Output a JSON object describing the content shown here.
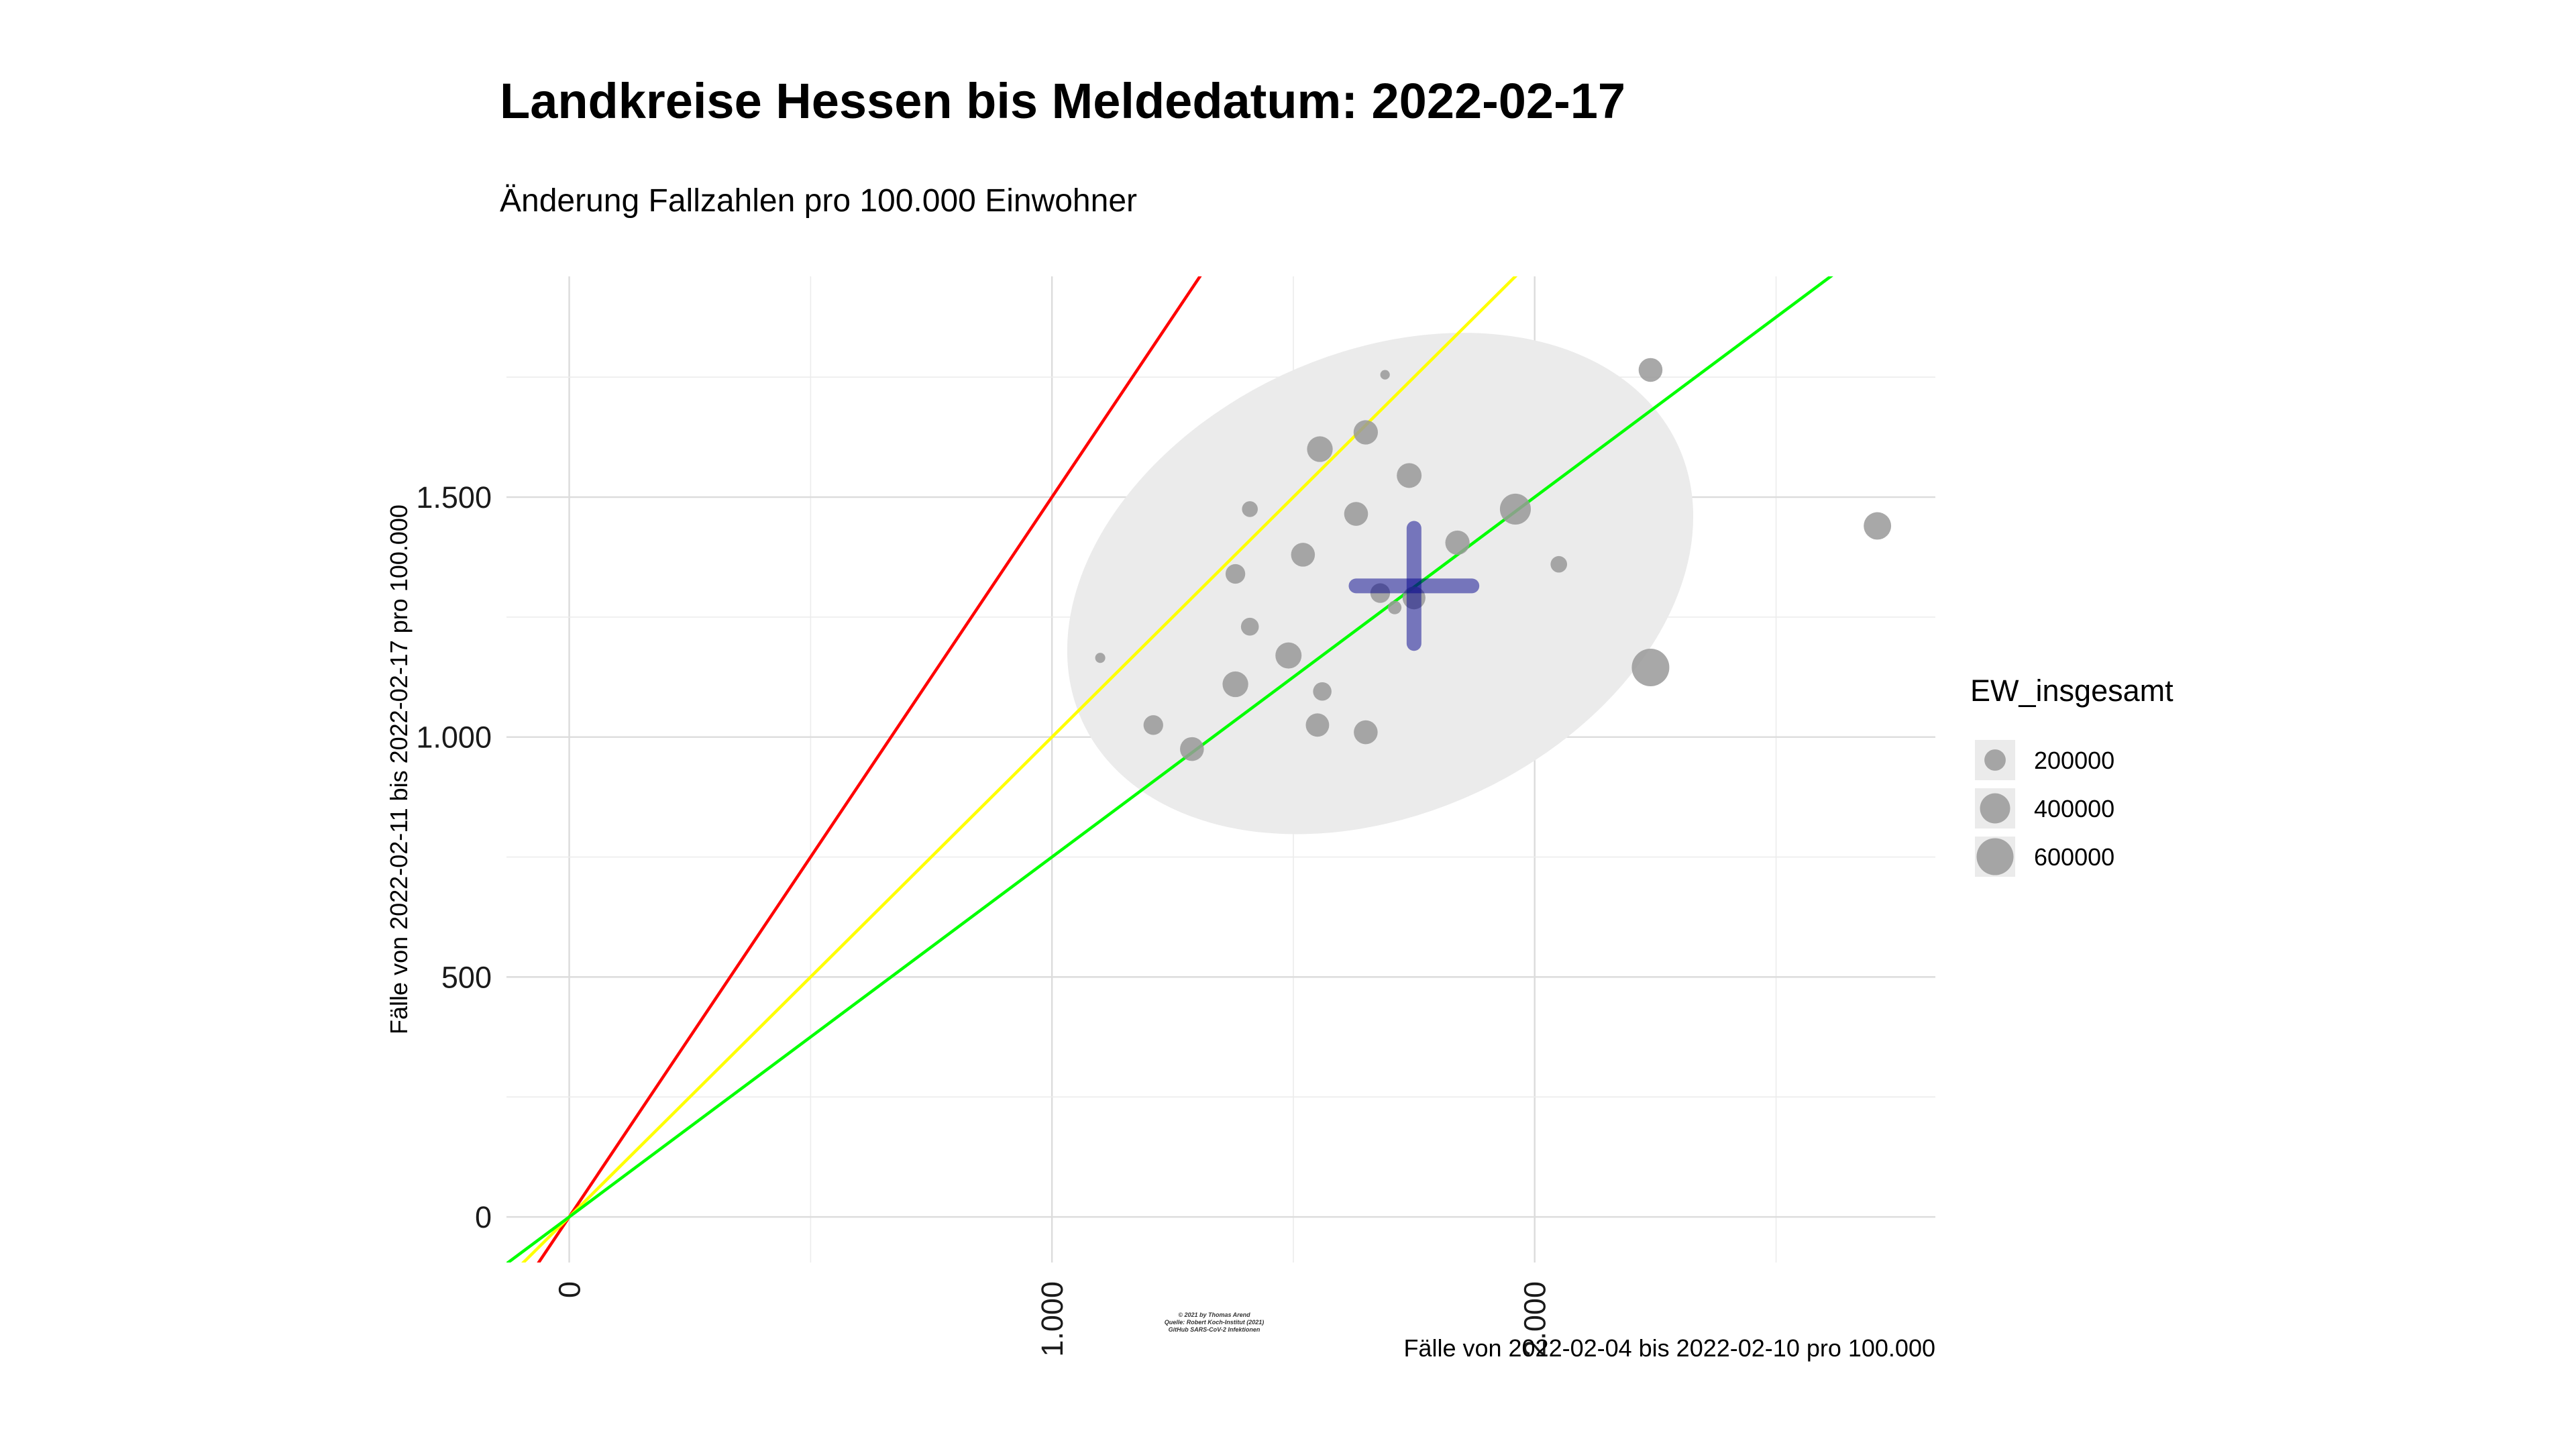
{
  "chart_data": {
    "type": "scatter",
    "title": "Landkreise Hessen bis Meldedatum: 2022-02-17",
    "subtitle": "Änderung Fallzahlen pro 100.000 Einwohner",
    "xlabel": "Fälle von 2022-02-04 bis 2022-02-10 pro 100.000",
    "ylabel": "Fälle von 2022-02-11 bis 2022-02-17 pro 100.000",
    "xlim": [
      -130,
      2830
    ],
    "ylim": [
      -95,
      1960
    ],
    "x_ticks": [
      0,
      1000,
      2000
    ],
    "x_tick_labels": [
      "0",
      "1.000",
      "2.000"
    ],
    "y_ticks": [
      0,
      500,
      1000,
      1500
    ],
    "y_tick_labels": [
      "0",
      "500",
      "1.000",
      "1.500"
    ],
    "grid": true,
    "reference_lines": [
      {
        "color": "#ff0000",
        "slope": 1.5
      },
      {
        "color": "#ffff00",
        "slope": 1.0
      },
      {
        "color": "#00ff00",
        "slope": 0.75
      }
    ],
    "ellipse": {
      "cx": 1680,
      "cy": 1320,
      "rx": 680,
      "ry": 480,
      "angle_deg": 25,
      "color": "#ebebeb"
    },
    "mean": {
      "x": 1750,
      "y": 1315,
      "x_halfwidth": 120,
      "y_halfheight": 120,
      "color": "#00008b"
    },
    "point_color": "#999999",
    "points": [
      {
        "x": 1100,
        "y": 1165,
        "size": 45000
      },
      {
        "x": 1690,
        "y": 1755,
        "size": 40000
      },
      {
        "x": 2240,
        "y": 1765,
        "size": 250000
      },
      {
        "x": 2710,
        "y": 1440,
        "size": 330000
      },
      {
        "x": 1555,
        "y": 1600,
        "size": 290000
      },
      {
        "x": 1650,
        "y": 1635,
        "size": 260000
      },
      {
        "x": 1740,
        "y": 1545,
        "size": 270000
      },
      {
        "x": 1410,
        "y": 1475,
        "size": 110000
      },
      {
        "x": 1630,
        "y": 1465,
        "size": 250000
      },
      {
        "x": 1960,
        "y": 1475,
        "size": 420000
      },
      {
        "x": 1520,
        "y": 1380,
        "size": 250000
      },
      {
        "x": 1840,
        "y": 1405,
        "size": 260000
      },
      {
        "x": 1380,
        "y": 1340,
        "size": 170000
      },
      {
        "x": 2050,
        "y": 1360,
        "size": 120000
      },
      {
        "x": 1680,
        "y": 1300,
        "size": 170000
      },
      {
        "x": 1750,
        "y": 1290,
        "size": 230000
      },
      {
        "x": 1710,
        "y": 1270,
        "size": 80000
      },
      {
        "x": 1410,
        "y": 1230,
        "size": 140000
      },
      {
        "x": 1490,
        "y": 1170,
        "size": 300000
      },
      {
        "x": 1380,
        "y": 1110,
        "size": 290000
      },
      {
        "x": 1560,
        "y": 1095,
        "size": 150000
      },
      {
        "x": 1210,
        "y": 1025,
        "size": 170000
      },
      {
        "x": 1550,
        "y": 1025,
        "size": 240000
      },
      {
        "x": 1650,
        "y": 1010,
        "size": 250000
      },
      {
        "x": 1290,
        "y": 975,
        "size": 250000
      },
      {
        "x": 2240,
        "y": 1145,
        "size": 620000
      }
    ],
    "legend": {
      "title": "EW_insgesamt",
      "position": "right",
      "entries": [
        {
          "label": "200000",
          "size": 200000
        },
        {
          "label": "400000",
          "size": 400000
        },
        {
          "label": "600000",
          "size": 600000
        }
      ]
    }
  },
  "caption": [
    "© 2021 by Thomas Arend",
    "Quelle: Robert Koch-Institut (2021)",
    "GitHub SARS-CoV-2 Infektionen"
  ]
}
